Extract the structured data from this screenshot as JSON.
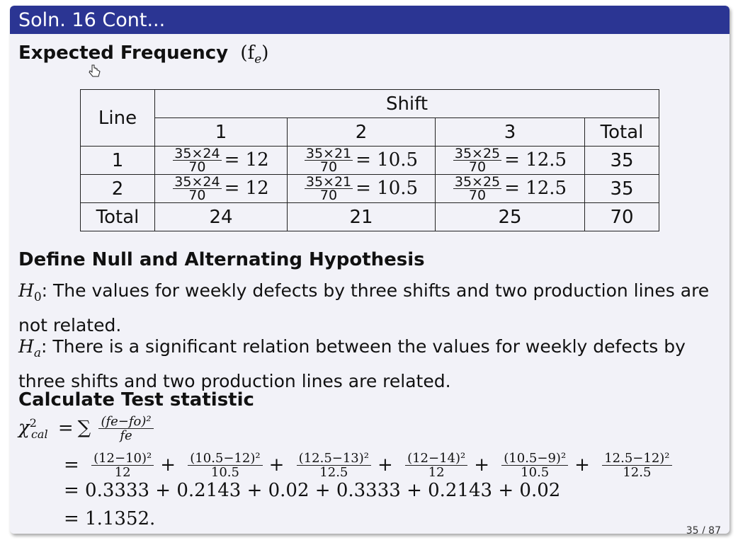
{
  "slide": {
    "title": "Soln. 16 Cont...",
    "heading_expected": "Expected Frequency",
    "fe_symbol": "(f",
    "fe_sub": "e",
    "fe_close": ")",
    "page": "35 / 87"
  },
  "table": {
    "line_header": "Line",
    "shift_header": "Shift",
    "col_headers": [
      "1",
      "2",
      "3",
      "Total"
    ],
    "rows": [
      {
        "label": "1",
        "cells": [
          {
            "num": "35×24",
            "den": "70",
            "result": "= 12"
          },
          {
            "num": "35×21",
            "den": "70",
            "result": "= 10.5"
          },
          {
            "num": "35×25",
            "den": "70",
            "result": "= 12.5"
          }
        ],
        "total": "35"
      },
      {
        "label": "2",
        "cells": [
          {
            "num": "35×24",
            "den": "70",
            "result": "= 12"
          },
          {
            "num": "35×21",
            "den": "70",
            "result": "= 10.5"
          },
          {
            "num": "35×25",
            "den": "70",
            "result": "= 12.5"
          }
        ],
        "total": "35"
      }
    ],
    "total_row": {
      "label": "Total",
      "values": [
        "24",
        "21",
        "25",
        "70"
      ]
    }
  },
  "hypothesis": {
    "heading": "Define Null and Alternating Hypothesis",
    "h0_symbol": "H",
    "h0_sub": "0",
    "h0_text": ": The values for weekly defects by three shifts and two production lines are not related.",
    "ha_symbol": "H",
    "ha_sub": "a",
    "ha_text": ": There is a significant relation between the values for weekly defects by three shifts and two production lines are related."
  },
  "statistic": {
    "heading": "Calculate Test statistic",
    "chi": "χ",
    "chi_sup": "2",
    "chi_sub": "cal",
    "eq_sign": "=",
    "sum": "∑",
    "formula_num": "(fe−fo)²",
    "formula_den": "fe",
    "terms": [
      {
        "num": "(12−10)²",
        "den": "12"
      },
      {
        "num": "(10.5−12)²",
        "den": "10.5"
      },
      {
        "num": "(12.5−13)²",
        "den": "12.5"
      },
      {
        "num": "(12−14)²",
        "den": "12"
      },
      {
        "num": "(10.5−9)²",
        "den": "10.5"
      },
      {
        "num": "12.5−12)²",
        "den": "12.5"
      }
    ],
    "line3": "= 0.3333 + 0.2143 + 0.02 + 0.3333 + 0.2143 + 0.02",
    "line4": "= 1.1352."
  }
}
